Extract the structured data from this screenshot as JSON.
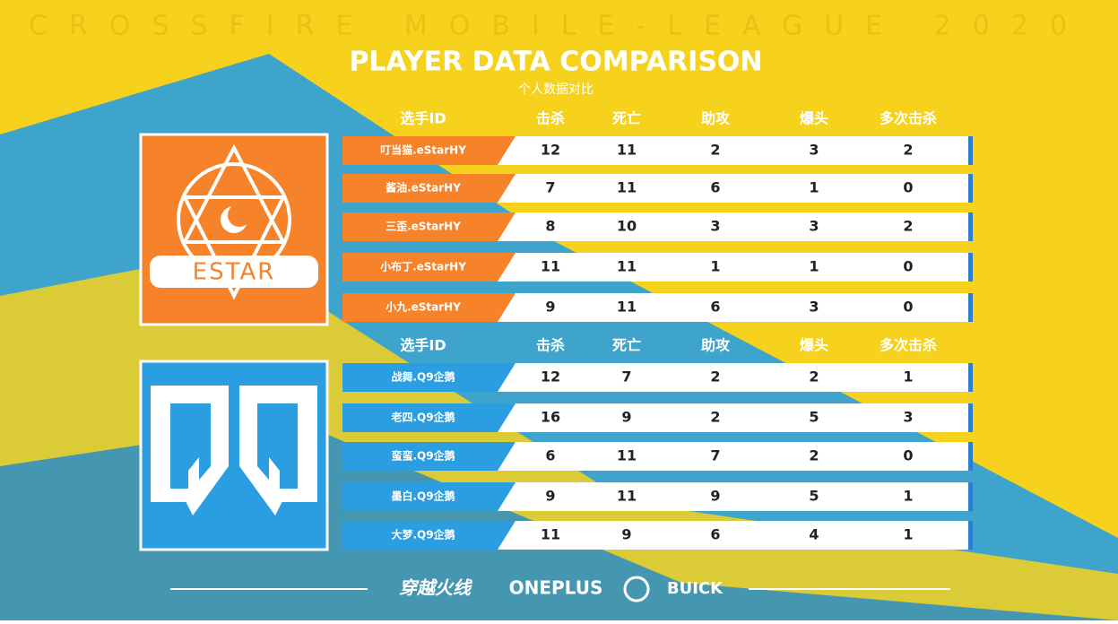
{
  "header": {
    "watermark": "CROSSFIRE MOBILE-LEAGUE 2020",
    "title": "PLAYER DATA COMPARISON",
    "subtitle": "个人数据对比"
  },
  "tables": [
    {
      "logo": "ESTAR",
      "columns": [
        "选手ID",
        "击杀",
        "死亡",
        "助攻",
        "爆头",
        "多次击杀"
      ],
      "rows": [
        [
          "叮当猫.eStarHY",
          12,
          11,
          2,
          3,
          2
        ],
        [
          "酱油.eStarHY",
          7,
          11,
          6,
          1,
          0
        ],
        [
          "三歪.eStarHY",
          8,
          10,
          3,
          3,
          2
        ],
        [
          "小布丁.eStarHY",
          11,
          11,
          1,
          1,
          0
        ],
        [
          "小九.eStarHY",
          9,
          11,
          6,
          3,
          0
        ]
      ]
    },
    {
      "columns": [
        "选手ID",
        "击杀",
        "死亡",
        "助攻",
        "爆头",
        "多次击杀"
      ],
      "rows": [
        [
          "战舞.Q9企鹅",
          12,
          7,
          2,
          2,
          1
        ],
        [
          "老四.Q9企鹅",
          16,
          9,
          2,
          5,
          3
        ],
        [
          "蛮蛮.Q9企鹅",
          6,
          11,
          7,
          2,
          0
        ],
        [
          "墨白.Q9企鹅",
          9,
          11,
          9,
          5,
          1
        ],
        [
          "大梦.Q9企鹅",
          11,
          9,
          6,
          4,
          1
        ]
      ]
    }
  ],
  "footer": {
    "sponsors": [
      "穿越火线",
      "ONEPLUS",
      "BUICK"
    ]
  }
}
